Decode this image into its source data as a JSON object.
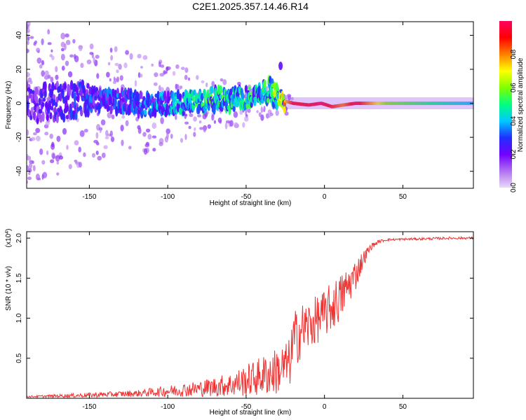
{
  "page_title": "C2E1.2025.357.14.46.R14",
  "chart_data": [
    {
      "type": "heatmap",
      "title": "C2E1.2025.357.14.46.R14",
      "xlabel": "Height of straight line (km)",
      "ylabel": "Frequency (Hz)",
      "xlim": [
        -190,
        95
      ],
      "ylim": [
        -50,
        48
      ],
      "xticks": [
        -150,
        -100,
        -50,
        0,
        50
      ],
      "xtick_labels": [
        "-150",
        "-100",
        "-50",
        "0",
        "50"
      ],
      "yticks": [
        -40,
        -20,
        0,
        20,
        40
      ],
      "ytick_labels": [
        "-40",
        "-20",
        "0",
        "20",
        "40"
      ],
      "colorbar": {
        "label": "Normalized spectral amplitude",
        "range": [
          0,
          1
        ],
        "ticks": [
          0.0,
          0.2,
          0.4,
          0.6,
          0.8
        ],
        "tick_labels": [
          "0.0",
          "0.2",
          "0.4",
          "0.6",
          "0.8"
        ],
        "colors": [
          "#e8d8f8",
          "#b070f0",
          "#7000ff",
          "#2030ff",
          "#00c8ff",
          "#00ff80",
          "#80ff00",
          "#ffff00",
          "#ff8000",
          "#ff0000",
          "#ff0060"
        ]
      },
      "ridge": [
        {
          "x": -185,
          "f": 0,
          "amp": 0.22
        },
        {
          "x": -170,
          "f": 1,
          "amp": 0.25
        },
        {
          "x": -150,
          "f": 2,
          "amp": 0.3
        },
        {
          "x": -130,
          "f": 1,
          "amp": 0.32
        },
        {
          "x": -110,
          "f": -1,
          "amp": 0.35
        },
        {
          "x": -90,
          "f": 0,
          "amp": 0.42
        },
        {
          "x": -75,
          "f": 2,
          "amp": 0.5
        },
        {
          "x": -60,
          "f": 2,
          "amp": 0.46
        },
        {
          "x": -45,
          "f": 4,
          "amp": 0.48
        },
        {
          "x": -35,
          "f": 8,
          "amp": 0.5
        },
        {
          "x": -28,
          "f": 2,
          "amp": 0.62
        },
        {
          "x": -20,
          "f": 0,
          "amp": 0.9
        },
        {
          "x": -10,
          "f": -1,
          "amp": 0.92
        },
        {
          "x": -2,
          "f": 0,
          "amp": 0.95
        },
        {
          "x": 5,
          "f": -2,
          "amp": 0.88
        },
        {
          "x": 12,
          "f": -1,
          "amp": 0.8
        },
        {
          "x": 20,
          "f": 0,
          "amp": 0.95
        },
        {
          "x": 40,
          "f": 0,
          "amp": 0.6
        },
        {
          "x": 70,
          "f": 0,
          "amp": 0.5
        },
        {
          "x": 95,
          "f": 0,
          "amp": 0.4
        }
      ]
    },
    {
      "type": "line",
      "xlabel": "Height of straight line (km)",
      "ylabel": "SNR (10 * v/v)",
      "exponent_label": "(x10",
      "exponent_power": "4",
      "exponent_close": ")",
      "xlim": [
        -190,
        95
      ],
      "ylim": [
        0,
        2.08
      ],
      "xticks": [
        -150,
        -100,
        -50,
        0,
        50
      ],
      "xtick_labels": [
        "-150",
        "-100",
        "-50",
        "0",
        "50"
      ],
      "yticks": [
        0.5,
        1.0,
        1.5,
        2.0
      ],
      "ytick_labels": [
        "0.5",
        "1.0",
        "1.5",
        "2.0"
      ],
      "color": "#ee3333",
      "envelope": {
        "x": [
          -190,
          -150,
          -120,
          -100,
          -80,
          -60,
          -50,
          -40,
          -30,
          -25,
          -22,
          -20,
          -15,
          -10,
          -5,
          0,
          5,
          10,
          15,
          20,
          25,
          30,
          35,
          40,
          60,
          80,
          95
        ],
        "mean": [
          0.02,
          0.04,
          0.06,
          0.09,
          0.12,
          0.17,
          0.22,
          0.28,
          0.34,
          0.4,
          0.45,
          0.7,
          0.85,
          0.9,
          0.98,
          1.05,
          1.15,
          1.25,
          1.4,
          1.55,
          1.75,
          1.9,
          1.96,
          1.98,
          1.99,
          2.0,
          2.0
        ],
        "noise": [
          0.01,
          0.03,
          0.04,
          0.07,
          0.1,
          0.15,
          0.2,
          0.25,
          0.3,
          0.3,
          0.3,
          0.38,
          0.35,
          0.33,
          0.3,
          0.3,
          0.32,
          0.3,
          0.25,
          0.2,
          0.1,
          0.04,
          0.02,
          0.015,
          0.015,
          0.015,
          0.015
        ]
      }
    }
  ]
}
